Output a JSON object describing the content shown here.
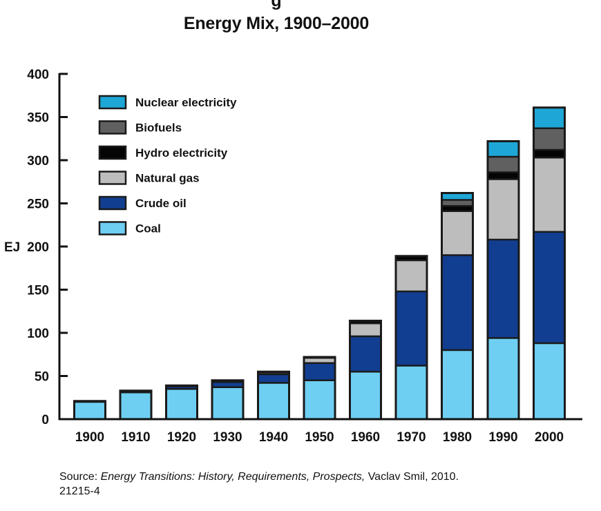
{
  "title_partial": "g",
  "chart_data": {
    "type": "bar",
    "stacked": true,
    "title": "Energy Mix, 1900–2000",
    "xlabel": "",
    "ylabel": "EJ",
    "ylim": [
      0,
      400
    ],
    "yticks": [
      "0",
      "50",
      "100",
      "150",
      "200",
      "250",
      "300",
      "350",
      "400"
    ],
    "categories": [
      "1900",
      "1910",
      "1920",
      "1930",
      "1940",
      "1950",
      "1960",
      "1970",
      "1980",
      "1990",
      "2000"
    ],
    "series": [
      {
        "name": "Coal",
        "color": "#6ecff2",
        "values": [
          20,
          31,
          35,
          37,
          42,
          45,
          55,
          62,
          80,
          94,
          88
        ]
      },
      {
        "name": "Crude oil",
        "color": "#123e91",
        "values": [
          1,
          2,
          3,
          6,
          10,
          20,
          41,
          86,
          110,
          114,
          129
        ]
      },
      {
        "name": "Natural gas",
        "color": "#bdbdbd",
        "values": [
          0,
          0,
          0,
          1,
          2,
          6,
          15,
          36,
          51,
          70,
          86
        ]
      },
      {
        "name": "Hydro electricity",
        "color": "#050505",
        "values": [
          0,
          0,
          1,
          1,
          1,
          1,
          3,
          5,
          6,
          8,
          9
        ]
      },
      {
        "name": "Biofuels",
        "color": "#606060",
        "values": [
          0,
          0,
          0,
          0,
          0,
          0,
          0,
          0,
          7,
          18,
          25
        ]
      },
      {
        "name": "Nuclear electricity",
        "color": "#1ea7d6",
        "values": [
          0,
          0,
          0,
          0,
          0,
          0,
          0,
          0,
          8,
          18,
          24
        ]
      }
    ],
    "legend_order": [
      "Nuclear electricity",
      "Biofuels",
      "Hydro electricity",
      "Natural gas",
      "Crude oil",
      "Coal"
    ],
    "legend_position": "top-left"
  },
  "source": {
    "prefix": "Source: ",
    "title": "Energy Transitions: History, Requirements, Prospects,",
    "suffix": " Vaclav Smil, 2010.",
    "code": "21215-4"
  }
}
